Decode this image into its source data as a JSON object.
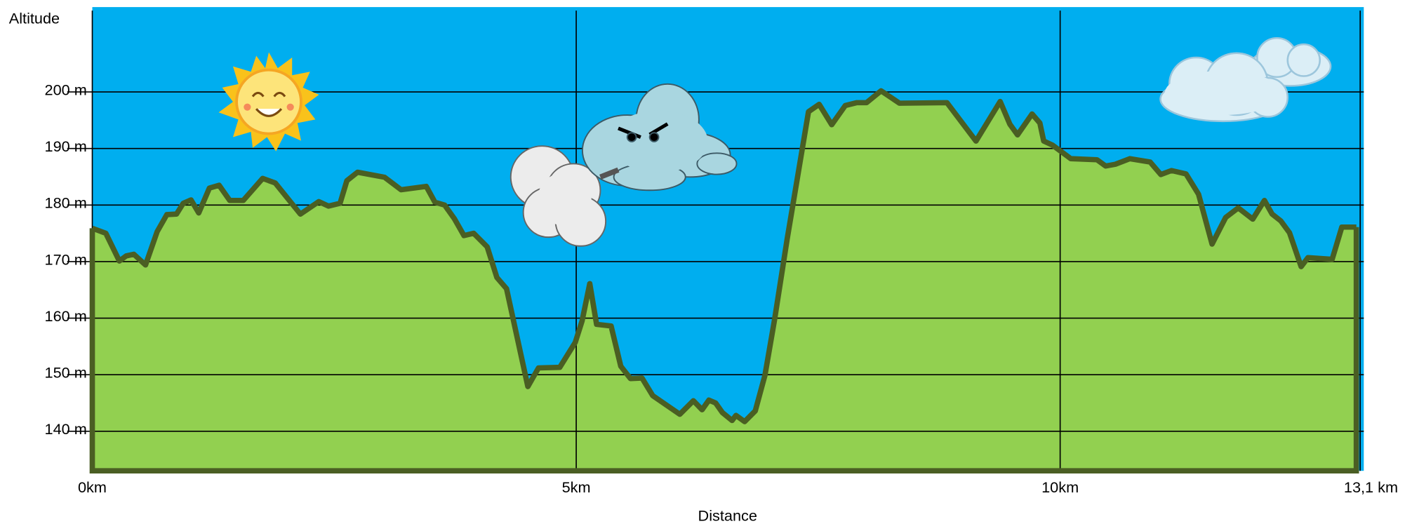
{
  "chart_data": {
    "type": "area",
    "y_label": "Altitude",
    "x_label": "Distance",
    "x": [
      0,
      0.14,
      0.28,
      0.35,
      0.43,
      0.55,
      0.67,
      0.77,
      0.87,
      0.94,
      1.02,
      1.1,
      1.21,
      1.31,
      1.42,
      1.56,
      1.76,
      1.89,
      2.15,
      2.34,
      2.44,
      2.56,
      2.63,
      2.74,
      3.02,
      3.19,
      3.45,
      3.54,
      3.64,
      3.74,
      3.84,
      3.94,
      4.08,
      4.18,
      4.28,
      4.5,
      4.61,
      4.83,
      4.99,
      5.06,
      5.14,
      5.21,
      5.36,
      5.46,
      5.56,
      5.68,
      5.79,
      6.07,
      6.21,
      6.3,
      6.37,
      6.44,
      6.51,
      6.61,
      6.65,
      6.74,
      6.85,
      6.95,
      7.05,
      7.18,
      7.4,
      7.51,
      7.64,
      7.78,
      7.9,
      8.0,
      8.15,
      8.34,
      8.83,
      9.13,
      9.38,
      9.48,
      9.56,
      9.71,
      9.79,
      9.83,
      9.92,
      10.11,
      10.38,
      10.47,
      10.57,
      10.72,
      10.93,
      11.04,
      11.15,
      11.3,
      11.43,
      11.57,
      11.71,
      11.84,
      11.99,
      12.11,
      12.19,
      12.28,
      12.37,
      12.49,
      12.56,
      12.81,
      12.91,
      13.06
    ],
    "values": [
      175.9,
      175.0,
      170.1,
      171.0,
      171.3,
      169.4,
      175.3,
      178.3,
      178.4,
      180.3,
      180.9,
      178.6,
      183.0,
      183.5,
      180.8,
      180.8,
      184.7,
      183.9,
      178.4,
      180.6,
      179.8,
      180.3,
      184.3,
      185.8,
      184.9,
      182.7,
      183.3,
      180.5,
      180.0,
      177.6,
      174.6,
      175.0,
      172.6,
      167.2,
      165.2,
      147.9,
      151.2,
      151.3,
      155.7,
      159.5,
      166.1,
      158.9,
      158.6,
      151.5,
      149.3,
      149.4,
      146.3,
      143.0,
      145.4,
      143.8,
      145.5,
      145.0,
      143.3,
      141.9,
      142.8,
      141.7,
      143.6,
      149.9,
      159.8,
      174.0,
      196.5,
      197.8,
      194.2,
      197.6,
      198.1,
      198.1,
      200.2,
      198.0,
      198.1,
      191.3,
      198.3,
      194.3,
      192.4,
      196.1,
      194.5,
      191.3,
      190.6,
      188.2,
      188.0,
      186.9,
      187.2,
      188.2,
      187.6,
      185.4,
      186.1,
      185.5,
      181.9,
      173.1,
      177.8,
      179.5,
      177.5,
      180.8,
      178.4,
      177.2,
      175.1,
      169.1,
      170.7,
      170.4,
      176.1,
      176.1
    ],
    "color": "#92d050",
    "line_color": "#4a5e23",
    "background_color": "#00aeef",
    "xlim": [
      0,
      13.1
    ],
    "ylim": [
      133,
      215
    ],
    "xticks": [
      {
        "value": 0,
        "label": "0km"
      },
      {
        "value": 5,
        "label": "5km"
      },
      {
        "value": 10,
        "label": "10km"
      },
      {
        "value": 13.1,
        "label": "13,1 km"
      }
    ],
    "yticks": [
      {
        "value": 140,
        "label": "140 m"
      },
      {
        "value": 150,
        "label": "150 m"
      },
      {
        "value": 160,
        "label": "160 m"
      },
      {
        "value": 170,
        "label": "170 m"
      },
      {
        "value": 180,
        "label": "180 m"
      },
      {
        "value": 190,
        "label": "190 m"
      },
      {
        "value": 200,
        "label": "200 m"
      }
    ],
    "grid": true
  }
}
